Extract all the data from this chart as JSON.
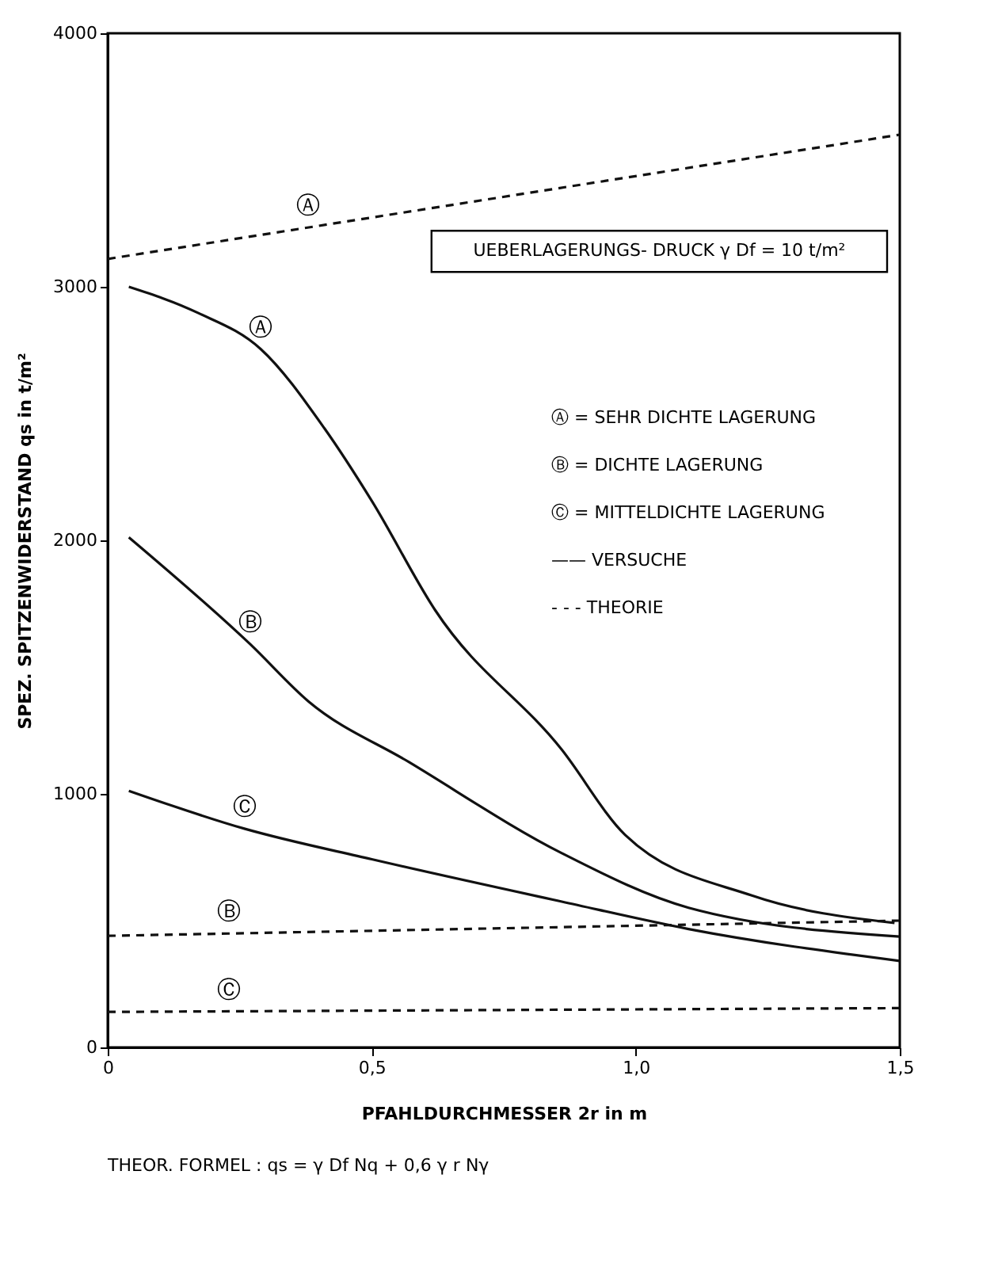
{
  "chart_data": {
    "type": "line",
    "xlabel": "PFAHLDURCHMESSER  2r  in  m",
    "ylabel": "SPEZ. SPITZENWIDERSTAND  qs  in  t/m²",
    "xlim": [
      0,
      1.5
    ],
    "xticks": [
      0,
      {
        "value": 0.5,
        "label": "0,5"
      },
      {
        "value": 1.0,
        "label": "1,0"
      },
      {
        "value": 1.5,
        "label": "1,5"
      }
    ],
    "ylim": [
      0,
      4000
    ],
    "yticks": [
      0,
      1000,
      2000,
      3000,
      4000
    ],
    "grid": false,
    "series": [
      {
        "line_style": "solid",
        "color": "#111111",
        "x": [
          0.04,
          0.17,
          0.29,
          0.41,
          0.5,
          0.62,
          0.86,
          0.98,
          1.22,
          1.49
        ],
        "values": [
          3000,
          2898,
          2754,
          2443,
          2156,
          1725,
          1174,
          838,
          599,
          491
        ]
      },
      {
        "line_style": "solid",
        "color": "#111111",
        "x": [
          0.04,
          0.27,
          0.38,
          0.57,
          0.86,
          1.1,
          1.5
        ],
        "values": [
          2012,
          1590,
          1365,
          1126,
          766,
          551,
          437
        ]
      },
      {
        "line_style": "solid",
        "color": "#111111",
        "x": [
          0.04,
          0.26,
          0.5,
          0.86,
          1.1,
          1.5
        ],
        "values": [
          1012,
          862,
          742,
          575,
          467,
          341
        ]
      },
      {
        "line_style": "dashed",
        "color": "#111111",
        "x": [
          0,
          1.5
        ],
        "values": [
          3110,
          3600
        ]
      },
      {
        "line_style": "dashed",
        "color": "#111111",
        "x": [
          0,
          1.5
        ],
        "values": [
          440,
          500
        ]
      },
      {
        "line_style": "dashed",
        "color": "#111111",
        "x": [
          0,
          1.5
        ],
        "values": [
          140,
          155
        ]
      }
    ],
    "annotations": [
      {
        "text": "Ⓐ",
        "x": 0.38,
        "y": 3234
      },
      {
        "text": "Ⓐ",
        "x": 0.29,
        "y": 2754
      },
      {
        "text": "Ⓑ",
        "x": 0.27,
        "y": 1590
      },
      {
        "text": "Ⓒ",
        "x": 0.26,
        "y": 862
      },
      {
        "text": "Ⓑ",
        "x": 0.23,
        "y": 449
      },
      {
        "text": "Ⓒ",
        "x": 0.23,
        "y": 142
      },
      "UEBERLAGERUNGS- DRUCK   γ Df = 10 t/m²",
      "Ⓐ = SEHR DICHTE LAGERUNG",
      "Ⓑ = DICHTE LAGERUNG",
      "Ⓒ = MITTELDICHTE LAGERUNG",
      "——  VERSUCHE",
      "- - -  THEORIE",
      "THEOR. FORMEL :   qs = γ Df Nq + 0,6 γ r Nγ"
    ]
  }
}
